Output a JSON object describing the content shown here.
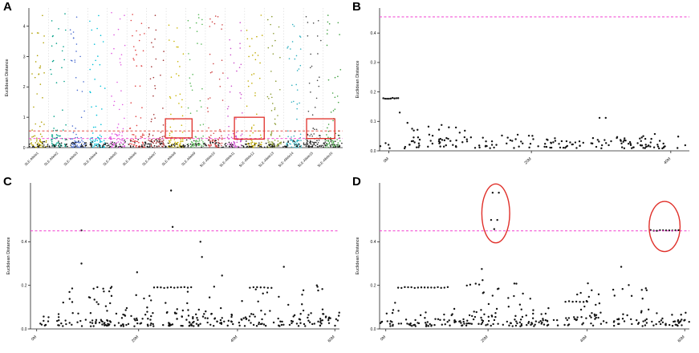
{
  "figure": {
    "background": "#ffffff",
    "accent_red": "#e0302a",
    "accent_magenta": "#f23fd0"
  },
  "chart_data": [
    {
      "id": "A",
      "label": "A",
      "type": "scatter",
      "ylabel": "Euclidean Distance",
      "ylim": [
        0,
        4.6
      ],
      "yticks": [
        {
          "v": 0,
          "label": "0"
        },
        {
          "v": 1,
          "label": "1"
        },
        {
          "v": 2,
          "label": "2"
        },
        {
          "v": 3,
          "label": "3"
        },
        {
          "v": 4,
          "label": "4"
        }
      ],
      "grid": "column-separators",
      "categories": [
        {
          "label": "SLE-Allele1",
          "color": "#b0a000"
        },
        {
          "label": "SLE-Allele2",
          "color": "#00a087"
        },
        {
          "label": "SLE-Allele3",
          "color": "#4d6fd0"
        },
        {
          "label": "SLE-Allele4",
          "color": "#00c0d8"
        },
        {
          "label": "SLE-Allele5",
          "color": "#e05ce0"
        },
        {
          "label": "SLE-Allele6",
          "color": "#e04040"
        },
        {
          "label": "SLE-Allele7",
          "color": "#a03030"
        },
        {
          "label": "SLE-Allele8",
          "color": "#c8b400"
        },
        {
          "label": "SLE-Allele9",
          "color": "#58b858"
        },
        {
          "label": "SLE-Allele10",
          "color": "#d04848"
        },
        {
          "label": "SLE-Allele11",
          "color": "#cc50cc"
        },
        {
          "label": "SLE-Allele12",
          "color": "#c0aa00"
        },
        {
          "label": "SLE-Allele13",
          "color": "#8a9a30"
        },
        {
          "label": "SLE-Allele14",
          "color": "#30b0c0"
        },
        {
          "label": "SLE-Allele15",
          "color": "#444444"
        },
        {
          "label": "SLE-Allele16",
          "color": "#40a040"
        }
      ],
      "thresholds": [
        {
          "y": 0.55,
          "color": "#e0382e"
        },
        {
          "y": 0.3,
          "color": "#f23fd0"
        }
      ],
      "point_r": 0.8,
      "seed": 11,
      "clusters": [
        {
          "kind": "columns",
          "sparse_n": 26,
          "dense_n": 42,
          "ymax": 4.45
        },
        {
          "kind": "band",
          "n": 320,
          "x": [
            0,
            1
          ],
          "base": 0.01,
          "spread": 0.1,
          "color": "#161616"
        }
      ],
      "highlights": [
        {
          "type": "rect",
          "x0": 0.435,
          "x1": 0.52,
          "y0": 0.32,
          "y1": 0.95
        },
        {
          "type": "rect",
          "x0": 0.655,
          "x1": 0.75,
          "y0": 0.28,
          "y1": 1.0
        },
        {
          "type": "rect",
          "x0": 0.885,
          "x1": 0.975,
          "y0": 0.3,
          "y1": 0.95
        }
      ]
    },
    {
      "id": "B",
      "label": "B",
      "type": "scatter",
      "ylabel": "Euclidean Distance",
      "ylim": [
        0,
        0.485
      ],
      "yticks": [
        {
          "v": 0.0,
          "label": "0.0"
        },
        {
          "v": 0.1,
          "label": "0.1"
        },
        {
          "v": 0.2,
          "label": "0.2"
        },
        {
          "v": 0.3,
          "label": "0.3"
        },
        {
          "v": 0.4,
          "label": "0.4"
        }
      ],
      "xticks": [
        {
          "pos": 0.03,
          "label": "0M"
        },
        {
          "pos": 0.49,
          "label": "20M"
        },
        {
          "pos": 0.94,
          "label": "40M"
        }
      ],
      "thresholds": [
        {
          "y": 0.455,
          "color": "#f23fd0"
        }
      ],
      "point_r": 1.2,
      "seed": 22,
      "clusters": [
        {
          "kind": "streak",
          "n": 9,
          "x": [
            0.012,
            0.06
          ],
          "y": 0.178
        },
        {
          "kind": "pts",
          "pts": [
            [
              0.71,
              0.112
            ],
            [
              0.73,
              0.112
            ],
            [
              0.065,
              0.13
            ],
            [
              0.09,
              0.095
            ],
            [
              0.105,
              0.075
            ]
          ]
        },
        {
          "kind": "uniform",
          "n": 26,
          "x": [
            0.1,
            0.32
          ],
          "y": [
            0.025,
            0.095
          ]
        },
        {
          "kind": "uniform",
          "n": 18,
          "x": [
            0.33,
            0.6
          ],
          "y": [
            0.02,
            0.055
          ]
        },
        {
          "kind": "uniform",
          "n": 22,
          "x": [
            0.6,
            0.99
          ],
          "y": [
            0.018,
            0.05
          ]
        },
        {
          "kind": "band",
          "n": 110,
          "x": [
            0,
            1
          ],
          "base": 0.008,
          "spread": 0.018
        }
      ],
      "highlights": []
    },
    {
      "id": "C",
      "label": "C",
      "type": "scatter",
      "ylabel": "Euclidean Distance",
      "ylim": [
        0,
        0.67
      ],
      "yticks": [
        {
          "v": 0.0,
          "label": "0.0"
        },
        {
          "v": 0.2,
          "label": "0.2"
        },
        {
          "v": 0.4,
          "label": "0.4"
        }
      ],
      "xticks": [
        {
          "pos": 0.02,
          "label": "0M"
        },
        {
          "pos": 0.35,
          "label": "20M"
        },
        {
          "pos": 0.67,
          "label": "40M"
        },
        {
          "pos": 0.985,
          "label": "60M"
        }
      ],
      "thresholds": [
        {
          "y": 0.45,
          "color": "#f23fd0"
        }
      ],
      "point_r": 1.2,
      "seed": 33,
      "clusters": [
        {
          "kind": "pts",
          "pts": [
            [
              0.455,
              0.635
            ],
            [
              0.46,
              0.468
            ],
            [
              0.165,
              0.452
            ],
            [
              0.55,
              0.4
            ],
            [
              0.555,
              0.33
            ],
            [
              0.165,
              0.3
            ],
            [
              0.82,
              0.285
            ],
            [
              0.345,
              0.26
            ],
            [
              0.62,
              0.245
            ]
          ]
        },
        {
          "kind": "streak",
          "n": 12,
          "x": [
            0.4,
            0.52
          ],
          "y": 0.19
        },
        {
          "kind": "streak",
          "n": 7,
          "x": [
            0.71,
            0.78
          ],
          "y": 0.19
        },
        {
          "kind": "uniform",
          "n": 22,
          "x": [
            0.08,
            0.28
          ],
          "y": [
            0.06,
            0.21
          ]
        },
        {
          "kind": "uniform",
          "n": 26,
          "x": [
            0.5,
            0.95
          ],
          "y": [
            0.06,
            0.2
          ]
        },
        {
          "kind": "uniform",
          "n": 12,
          "x": [
            0.3,
            0.5
          ],
          "y": [
            0.05,
            0.16
          ]
        },
        {
          "kind": "band",
          "n": 230,
          "x": [
            0,
            1
          ],
          "base": 0.012,
          "spread": 0.03
        }
      ],
      "highlights": []
    },
    {
      "id": "D",
      "label": "D",
      "type": "scatter",
      "ylabel": "Euclidean Distance",
      "ylim": [
        0,
        0.67
      ],
      "yticks": [
        {
          "v": 0.0,
          "label": "0.0"
        },
        {
          "v": 0.2,
          "label": "0.2"
        },
        {
          "v": 0.4,
          "label": "0.4"
        }
      ],
      "xticks": [
        {
          "pos": 0.02,
          "label": "0M"
        },
        {
          "pos": 0.35,
          "label": "20M"
        },
        {
          "pos": 0.67,
          "label": "40M"
        },
        {
          "pos": 0.985,
          "label": "60M"
        }
      ],
      "thresholds": [
        {
          "y": 0.45,
          "color": "#f23fd0"
        }
      ],
      "point_r": 1.2,
      "seed": 44,
      "clusters": [
        {
          "kind": "pts",
          "pts": [
            [
              0.365,
              0.625
            ],
            [
              0.385,
              0.625
            ],
            [
              0.36,
              0.5
            ],
            [
              0.38,
              0.5
            ],
            [
              0.37,
              0.458
            ],
            [
              0.78,
              0.285
            ],
            [
              0.33,
              0.275
            ],
            [
              0.05,
              0.12
            ]
          ]
        },
        {
          "kind": "streak",
          "n": 10,
          "x": [
            0.875,
            0.965
          ],
          "y": 0.452
        },
        {
          "kind": "streak",
          "n": 16,
          "x": [
            0.06,
            0.22
          ],
          "y": 0.19
        },
        {
          "kind": "streak",
          "n": 7,
          "x": [
            0.6,
            0.67
          ],
          "y": 0.125
        },
        {
          "kind": "uniform",
          "n": 24,
          "x": [
            0.28,
            0.5
          ],
          "y": [
            0.05,
            0.23
          ]
        },
        {
          "kind": "uniform",
          "n": 24,
          "x": [
            0.63,
            0.9
          ],
          "y": [
            0.06,
            0.21
          ]
        },
        {
          "kind": "band",
          "n": 230,
          "x": [
            0,
            1
          ],
          "base": 0.012,
          "spread": 0.03
        }
      ],
      "highlights": [
        {
          "type": "ellipse",
          "cx": 0.375,
          "cy": 0.53,
          "rx": 0.045,
          "ry": 0.135
        },
        {
          "type": "ellipse",
          "cx": 0.92,
          "cy": 0.47,
          "rx": 0.05,
          "ry": 0.115
        }
      ]
    }
  ]
}
